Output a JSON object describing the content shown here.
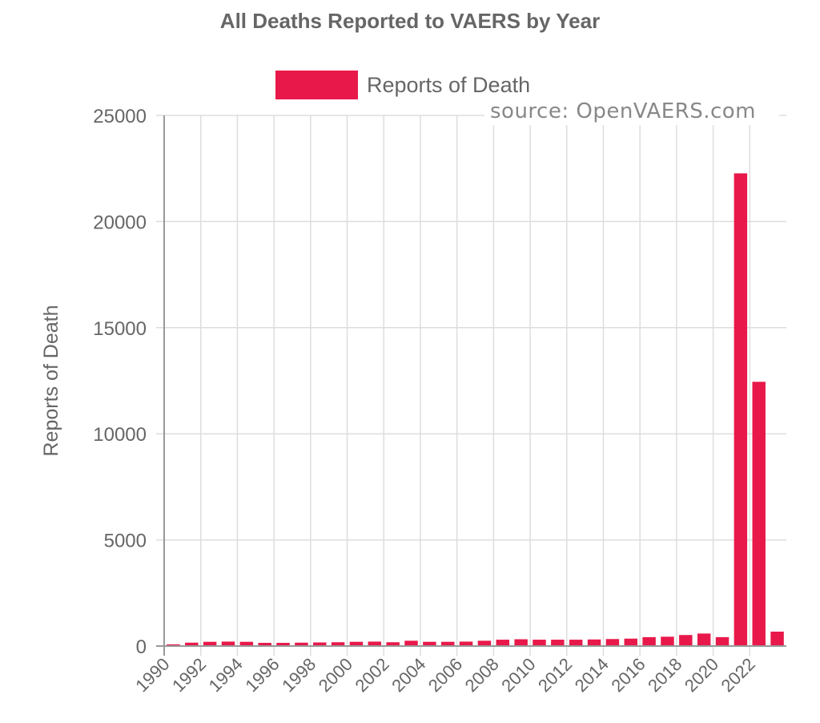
{
  "chart_data": {
    "type": "bar",
    "title": "All Deaths Reported to VAERS by Year",
    "xlabel": "",
    "ylabel": "Reports of Death",
    "ylim": [
      0,
      25000
    ],
    "yticks": [
      0,
      5000,
      10000,
      15000,
      20000,
      25000
    ],
    "grid": true,
    "legend_position": "top",
    "source_note": "source: OpenVAERS.com",
    "categories": [
      "1990",
      "1991",
      "1992",
      "1993",
      "1994",
      "1995",
      "1996",
      "1997",
      "1998",
      "1999",
      "2000",
      "2001",
      "2002",
      "2003",
      "2004",
      "2005",
      "2006",
      "2007",
      "2008",
      "2009",
      "2010",
      "2011",
      "2012",
      "2013",
      "2014",
      "2015",
      "2016",
      "2017",
      "2018",
      "2019",
      "2020",
      "2021",
      "2022",
      "2023"
    ],
    "xtick_labels": [
      "1990",
      "1992",
      "1994",
      "1996",
      "1998",
      "2000",
      "2002",
      "2004",
      "2006",
      "2008",
      "2010",
      "2012",
      "2014",
      "2016",
      "2018",
      "2020",
      "2022"
    ],
    "series": [
      {
        "name": "Reports of Death",
        "color": "#e8194a",
        "values": [
          80,
          160,
          200,
          210,
          200,
          150,
          150,
          160,
          170,
          180,
          200,
          210,
          180,
          250,
          200,
          200,
          210,
          250,
          300,
          320,
          300,
          300,
          300,
          310,
          330,
          350,
          420,
          440,
          520,
          590,
          420,
          22270,
          12450,
          680
        ]
      }
    ]
  }
}
